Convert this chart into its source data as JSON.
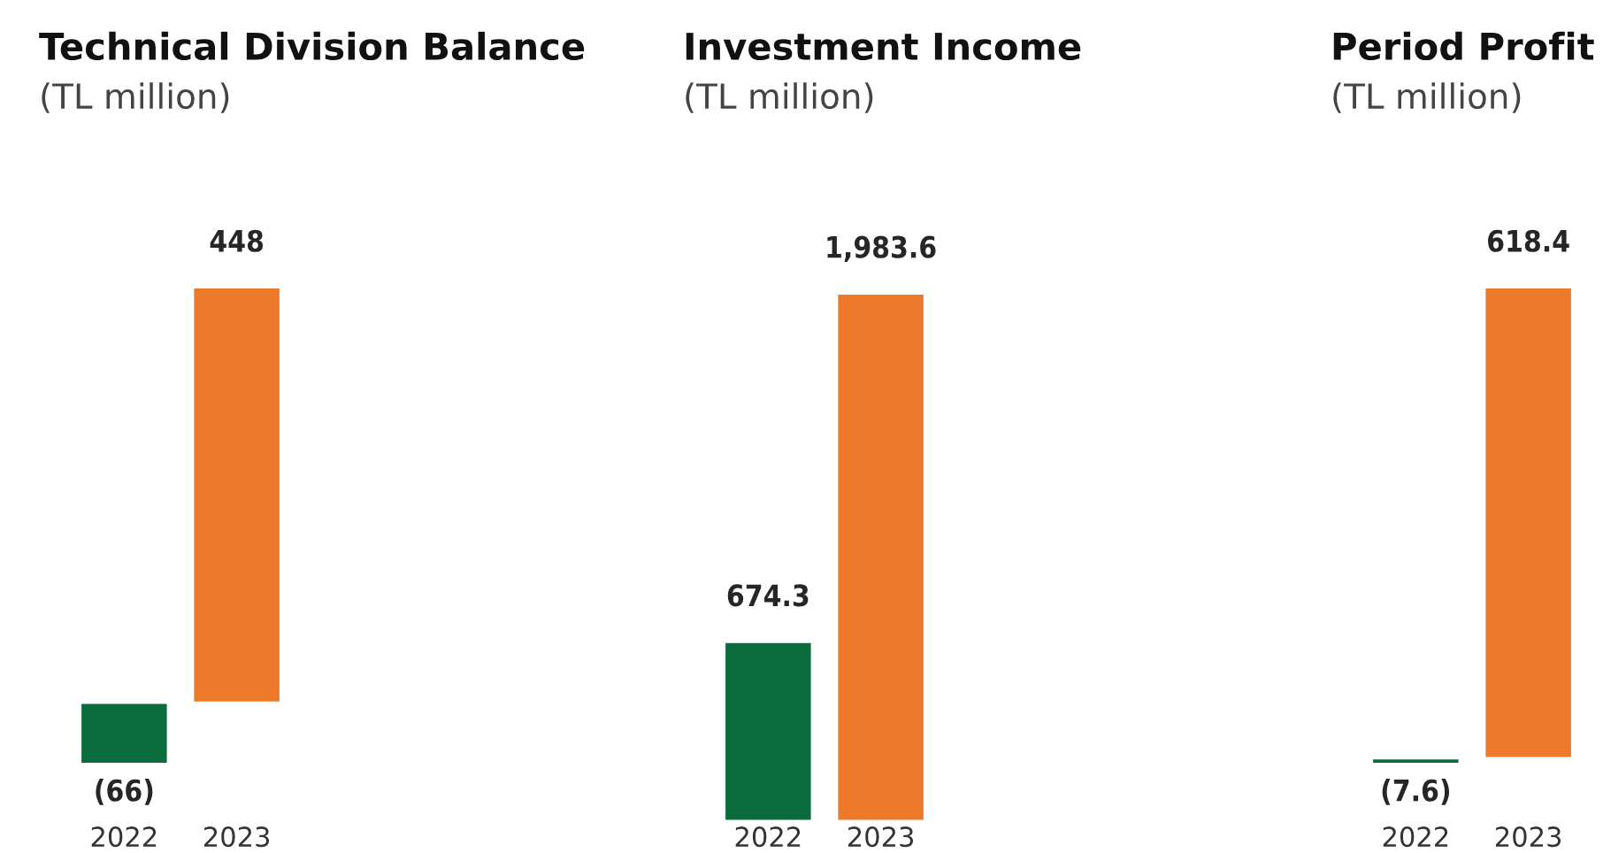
{
  "chart_data": [
    {
      "type": "bar",
      "title": "Technical Division Balance",
      "subtitle": "(TL million)",
      "categories": [
        "2022",
        "2023"
      ],
      "values": [
        -66,
        448
      ],
      "colors": [
        "#0a6b3c",
        "#ec7a2a"
      ],
      "value_labels": [
        "(66)",
        "448"
      ]
    },
    {
      "type": "bar",
      "title": "Investment Income",
      "subtitle": "(TL million)",
      "categories": [
        "2022",
        "2023"
      ],
      "values": [
        674.3,
        1983.6
      ],
      "colors": [
        "#0a6b3c",
        "#ec7a2a"
      ],
      "value_labels": [
        "674.3",
        "1,983.6"
      ]
    },
    {
      "type": "bar",
      "title": "Period Profit",
      "subtitle": "(TL million)",
      "categories": [
        "2022",
        "2023"
      ],
      "values": [
        -7.6,
        618.4
      ],
      "colors": [
        "#0a6b3c",
        "#ec7a2a"
      ],
      "value_labels": [
        "(7.6)",
        "618.4"
      ]
    }
  ]
}
